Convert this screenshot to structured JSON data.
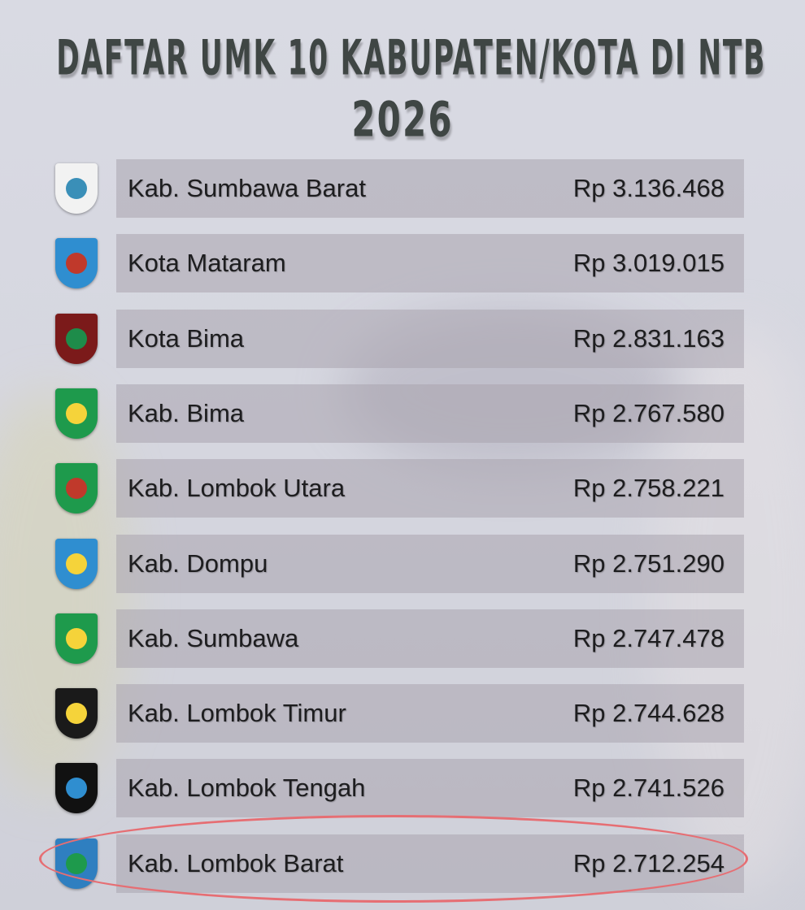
{
  "title_line1": "DAFTAR UMK 10 KABUPATEN/KOTA DI NTB",
  "title_line2": "2026",
  "highlight_color": "#e66e73",
  "rows": [
    {
      "name": "Kab. Sumbawa Barat",
      "value": "Rp 3.136.468",
      "logo_icon": "sumbawa-barat-emblem",
      "logo_color": "#f2f2f2",
      "logo_accent": "#3a8fb8"
    },
    {
      "name": "Kota Mataram",
      "value": "Rp 3.019.015",
      "logo_icon": "mataram-emblem",
      "logo_color": "#2f8ed0",
      "logo_accent": "#c0392b"
    },
    {
      "name": "Kota Bima",
      "value": "Rp 2.831.163",
      "logo_icon": "kota-bima-emblem",
      "logo_color": "#7b1a1a",
      "logo_accent": "#1e8c4a"
    },
    {
      "name": "Kab. Bima",
      "value": "Rp 2.767.580",
      "logo_icon": "kab-bima-emblem",
      "logo_color": "#1e9a4c",
      "logo_accent": "#f5d33a"
    },
    {
      "name": "Kab. Lombok Utara",
      "value": "Rp 2.758.221",
      "logo_icon": "lombok-utara-emblem",
      "logo_color": "#1e9a4c",
      "logo_accent": "#c0392b"
    },
    {
      "name": "Kab. Dompu",
      "value": "Rp 2.751.290",
      "logo_icon": "dompu-emblem",
      "logo_color": "#2f8ed0",
      "logo_accent": "#f5d33a"
    },
    {
      "name": "Kab. Sumbawa",
      "value": "Rp 2.747.478",
      "logo_icon": "sumbawa-emblem",
      "logo_color": "#1e9a4c",
      "logo_accent": "#f5d33a"
    },
    {
      "name": "Kab. Lombok Timur",
      "value": "Rp 2.744.628",
      "logo_icon": "lombok-timur-emblem",
      "logo_color": "#1a1a1a",
      "logo_accent": "#f5d33a"
    },
    {
      "name": "Kab. Lombok Tengah",
      "value": "Rp 2.741.526",
      "logo_icon": "lombok-tengah-emblem",
      "logo_color": "#111111",
      "logo_accent": "#2f8ed0"
    },
    {
      "name": "Kab. Lombok Barat",
      "value": "Rp 2.712.254",
      "logo_icon": "lombok-barat-emblem",
      "logo_color": "#2f7fc0",
      "logo_accent": "#1e9a4c",
      "highlighted": true
    }
  ]
}
